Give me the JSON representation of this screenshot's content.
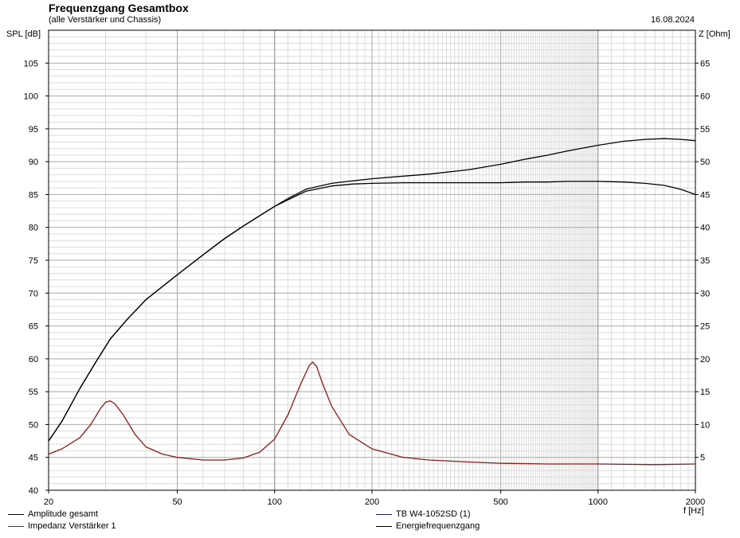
{
  "header": {
    "title": "Frequenzgang Gesamtbox",
    "subtitle": "(alle Verstärker und Chassis)",
    "date": "16.08.2024"
  },
  "chart_data": {
    "type": "line",
    "x_scale": "log",
    "xlim": [
      20,
      2000
    ],
    "ylim_left": [
      40,
      110
    ],
    "ylim_right": [
      0,
      70
    ],
    "y_left_label": "SPL [dB]",
    "y_right_label": "Z [Ohm]",
    "x_unit_label": "f [Hz]",
    "x_tick_labels": [
      "20",
      "50",
      "100",
      "200",
      "500",
      "1000",
      "2000"
    ],
    "x_tick_values": [
      20,
      50,
      100,
      200,
      500,
      1000,
      2000
    ],
    "y_left_ticks": [
      40,
      45,
      50,
      55,
      60,
      65,
      70,
      75,
      80,
      85,
      90,
      95,
      100,
      105
    ],
    "y_right_ticks": [
      5,
      10,
      15,
      20,
      25,
      30,
      35,
      40,
      45,
      50,
      55,
      60,
      65
    ],
    "grid": true,
    "legend_position": "bottom",
    "series": [
      {
        "name": "Amplitude gesamt",
        "axis": "left",
        "color": "#000000",
        "x": [
          20,
          22,
          25,
          28,
          31,
          35,
          40,
          45,
          50,
          60,
          70,
          80,
          90,
          100,
          110,
          125,
          150,
          175,
          200,
          250,
          300,
          400,
          500,
          600,
          700,
          800,
          1000,
          1200,
          1400,
          1600,
          1800,
          2000
        ],
        "y": [
          47.5,
          50.5,
          55.5,
          59.5,
          63,
          66,
          69,
          71,
          72.8,
          75.8,
          78.3,
          80.2,
          81.8,
          83.2,
          84.2,
          85.5,
          86.3,
          86.6,
          86.7,
          86.8,
          86.8,
          86.8,
          86.8,
          86.9,
          86.9,
          87.0,
          87.0,
          86.9,
          86.7,
          86.4,
          85.8,
          85.0
        ]
      },
      {
        "name": "Energiefrequenzgang",
        "axis": "left",
        "color": "#000000",
        "x": [
          20,
          22,
          25,
          28,
          31,
          35,
          40,
          45,
          50,
          60,
          70,
          80,
          90,
          100,
          110,
          125,
          150,
          175,
          200,
          250,
          300,
          400,
          500,
          600,
          700,
          800,
          1000,
          1200,
          1400,
          1600,
          1800,
          2000
        ],
        "y": [
          47.5,
          50.5,
          55.5,
          59.5,
          63,
          66,
          69,
          71,
          72.8,
          75.8,
          78.3,
          80.2,
          81.8,
          83.2,
          84.4,
          85.8,
          86.7,
          87.1,
          87.4,
          87.8,
          88.1,
          88.8,
          89.6,
          90.4,
          91.0,
          91.6,
          92.5,
          93.1,
          93.4,
          93.5,
          93.4,
          93.2
        ]
      },
      {
        "name": "Impedanz Verstärker 1",
        "axis": "right",
        "color": "#8b1a1a",
        "x": [
          20,
          22,
          25,
          27,
          29,
          30,
          31,
          32,
          34,
          37,
          40,
          45,
          50,
          60,
          70,
          80,
          90,
          100,
          110,
          120,
          128,
          131,
          135,
          140,
          150,
          170,
          200,
          250,
          300,
          400,
          500,
          700,
          1000,
          1500,
          2000
        ],
        "y": [
          5.5,
          6.3,
          8.0,
          10.0,
          12.5,
          13.4,
          13.6,
          13.2,
          11.5,
          8.5,
          6.6,
          5.5,
          5.0,
          4.6,
          4.6,
          4.9,
          5.8,
          7.8,
          11.5,
          16.0,
          19.0,
          19.5,
          18.8,
          16.5,
          12.8,
          8.5,
          6.3,
          5.0,
          4.6,
          4.3,
          4.1,
          4.0,
          4.0,
          3.9,
          4.0
        ]
      },
      {
        "name": "TB W4-1052SD (1)",
        "axis": "left",
        "color": "#1a1a6e",
        "x": [],
        "y": []
      }
    ]
  },
  "legend": {
    "amp": "Amplitude gesamt",
    "imp": "Impedanz Verstärker 1",
    "tb": "TB W4-1052SD (1)",
    "energy": "Energiefrequenzgang"
  }
}
